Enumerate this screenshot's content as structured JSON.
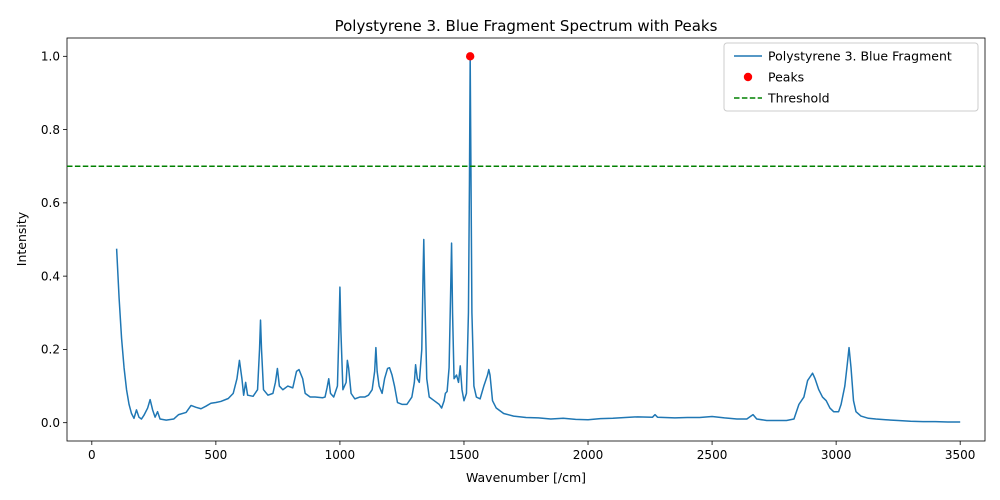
{
  "chart_data": {
    "type": "line",
    "title": "Polystyrene 3. Blue Fragment Spectrum with Peaks",
    "xlabel": "Wavenumber [/cm]",
    "ylabel": "Intensity",
    "xlim": [
      -100,
      3600
    ],
    "ylim": [
      -0.05,
      1.05
    ],
    "xticks": [
      0,
      500,
      1000,
      1500,
      2000,
      2500,
      3000,
      3500
    ],
    "yticks": [
      0.0,
      0.2,
      0.4,
      0.6,
      0.8,
      1.0
    ],
    "xtick_labels": [
      "0",
      "500",
      "1000",
      "1500",
      "2000",
      "2500",
      "3000",
      "3500"
    ],
    "ytick_labels": [
      "0.0",
      "0.2",
      "0.4",
      "0.6",
      "0.8",
      "1.0"
    ],
    "legend_position": "top-right",
    "grid": false,
    "series": [
      {
        "name": "Polystyrene 3. Blue Fragment",
        "kind": "line",
        "color": "#1f77b4",
        "points": [
          [
            100,
            0.475
          ],
          [
            110,
            0.34
          ],
          [
            120,
            0.23
          ],
          [
            130,
            0.15
          ],
          [
            140,
            0.09
          ],
          [
            150,
            0.05
          ],
          [
            160,
            0.025
          ],
          [
            170,
            0.012
          ],
          [
            180,
            0.035
          ],
          [
            190,
            0.015
          ],
          [
            200,
            0.01
          ],
          [
            210,
            0.02
          ],
          [
            225,
            0.04
          ],
          [
            235,
            0.063
          ],
          [
            245,
            0.035
          ],
          [
            255,
            0.015
          ],
          [
            265,
            0.03
          ],
          [
            275,
            0.01
          ],
          [
            300,
            0.007
          ],
          [
            330,
            0.01
          ],
          [
            350,
            0.022
          ],
          [
            380,
            0.028
          ],
          [
            400,
            0.047
          ],
          [
            420,
            0.042
          ],
          [
            440,
            0.038
          ],
          [
            460,
            0.045
          ],
          [
            480,
            0.053
          ],
          [
            500,
            0.055
          ],
          [
            520,
            0.058
          ],
          [
            550,
            0.066
          ],
          [
            570,
            0.08
          ],
          [
            585,
            0.12
          ],
          [
            595,
            0.17
          ],
          [
            605,
            0.12
          ],
          [
            612,
            0.075
          ],
          [
            620,
            0.11
          ],
          [
            628,
            0.075
          ],
          [
            650,
            0.072
          ],
          [
            668,
            0.09
          ],
          [
            676,
            0.2
          ],
          [
            680,
            0.28
          ],
          [
            684,
            0.2
          ],
          [
            692,
            0.09
          ],
          [
            710,
            0.075
          ],
          [
            730,
            0.08
          ],
          [
            740,
            0.11
          ],
          [
            748,
            0.148
          ],
          [
            756,
            0.1
          ],
          [
            770,
            0.09
          ],
          [
            790,
            0.1
          ],
          [
            810,
            0.095
          ],
          [
            825,
            0.14
          ],
          [
            835,
            0.145
          ],
          [
            850,
            0.12
          ],
          [
            860,
            0.08
          ],
          [
            880,
            0.07
          ],
          [
            900,
            0.07
          ],
          [
            930,
            0.068
          ],
          [
            940,
            0.07
          ],
          [
            948,
            0.095
          ],
          [
            955,
            0.12
          ],
          [
            962,
            0.08
          ],
          [
            975,
            0.07
          ],
          [
            990,
            0.1
          ],
          [
            996,
            0.25
          ],
          [
            1000,
            0.37
          ],
          [
            1004,
            0.25
          ],
          [
            1012,
            0.09
          ],
          [
            1025,
            0.11
          ],
          [
            1030,
            0.17
          ],
          [
            1035,
            0.15
          ],
          [
            1045,
            0.08
          ],
          [
            1060,
            0.065
          ],
          [
            1080,
            0.07
          ],
          [
            1100,
            0.07
          ],
          [
            1115,
            0.075
          ],
          [
            1130,
            0.09
          ],
          [
            1140,
            0.14
          ],
          [
            1145,
            0.205
          ],
          [
            1150,
            0.14
          ],
          [
            1158,
            0.1
          ],
          [
            1170,
            0.08
          ],
          [
            1180,
            0.12
          ],
          [
            1192,
            0.148
          ],
          [
            1200,
            0.15
          ],
          [
            1210,
            0.13
          ],
          [
            1220,
            0.1
          ],
          [
            1232,
            0.055
          ],
          [
            1250,
            0.05
          ],
          [
            1270,
            0.05
          ],
          [
            1290,
            0.07
          ],
          [
            1300,
            0.11
          ],
          [
            1305,
            0.158
          ],
          [
            1312,
            0.12
          ],
          [
            1320,
            0.11
          ],
          [
            1330,
            0.2
          ],
          [
            1335,
            0.4
          ],
          [
            1338,
            0.5
          ],
          [
            1342,
            0.35
          ],
          [
            1350,
            0.12
          ],
          [
            1360,
            0.07
          ],
          [
            1380,
            0.06
          ],
          [
            1400,
            0.05
          ],
          [
            1410,
            0.04
          ],
          [
            1420,
            0.06
          ],
          [
            1425,
            0.08
          ],
          [
            1432,
            0.085
          ],
          [
            1440,
            0.15
          ],
          [
            1446,
            0.35
          ],
          [
            1450,
            0.49
          ],
          [
            1454,
            0.3
          ],
          [
            1460,
            0.12
          ],
          [
            1470,
            0.13
          ],
          [
            1478,
            0.11
          ],
          [
            1485,
            0.155
          ],
          [
            1492,
            0.09
          ],
          [
            1500,
            0.06
          ],
          [
            1510,
            0.08
          ],
          [
            1518,
            0.3
          ],
          [
            1522,
            0.65
          ],
          [
            1525,
            1.0
          ],
          [
            1528,
            0.7
          ],
          [
            1532,
            0.3
          ],
          [
            1540,
            0.1
          ],
          [
            1550,
            0.07
          ],
          [
            1565,
            0.065
          ],
          [
            1580,
            0.1
          ],
          [
            1595,
            0.13
          ],
          [
            1600,
            0.145
          ],
          [
            1605,
            0.13
          ],
          [
            1615,
            0.06
          ],
          [
            1630,
            0.04
          ],
          [
            1660,
            0.025
          ],
          [
            1700,
            0.018
          ],
          [
            1750,
            0.014
          ],
          [
            1800,
            0.013
          ],
          [
            1850,
            0.01
          ],
          [
            1900,
            0.012
          ],
          [
            1950,
            0.009
          ],
          [
            2000,
            0.008
          ],
          [
            2050,
            0.011
          ],
          [
            2100,
            0.012
          ],
          [
            2150,
            0.014
          ],
          [
            2200,
            0.016
          ],
          [
            2260,
            0.015
          ],
          [
            2270,
            0.022
          ],
          [
            2280,
            0.015
          ],
          [
            2350,
            0.013
          ],
          [
            2400,
            0.014
          ],
          [
            2450,
            0.014
          ],
          [
            2500,
            0.017
          ],
          [
            2550,
            0.013
          ],
          [
            2600,
            0.01
          ],
          [
            2640,
            0.01
          ],
          [
            2665,
            0.022
          ],
          [
            2680,
            0.01
          ],
          [
            2720,
            0.006
          ],
          [
            2800,
            0.006
          ],
          [
            2830,
            0.01
          ],
          [
            2850,
            0.05
          ],
          [
            2870,
            0.07
          ],
          [
            2885,
            0.115
          ],
          [
            2895,
            0.125
          ],
          [
            2905,
            0.135
          ],
          [
            2915,
            0.12
          ],
          [
            2930,
            0.09
          ],
          [
            2945,
            0.07
          ],
          [
            2960,
            0.06
          ],
          [
            2975,
            0.04
          ],
          [
            2990,
            0.03
          ],
          [
            3010,
            0.03
          ],
          [
            3020,
            0.05
          ],
          [
            3035,
            0.1
          ],
          [
            3045,
            0.16
          ],
          [
            3052,
            0.205
          ],
          [
            3060,
            0.15
          ],
          [
            3070,
            0.06
          ],
          [
            3080,
            0.03
          ],
          [
            3100,
            0.018
          ],
          [
            3130,
            0.012
          ],
          [
            3160,
            0.01
          ],
          [
            3200,
            0.008
          ],
          [
            3250,
            0.006
          ],
          [
            3300,
            0.004
          ],
          [
            3350,
            0.003
          ],
          [
            3400,
            0.003
          ],
          [
            3450,
            0.002
          ],
          [
            3500,
            0.002
          ]
        ]
      },
      {
        "name": "Peaks",
        "kind": "scatter",
        "color": "#ff0000",
        "points": [
          [
            1525,
            1.0
          ]
        ]
      },
      {
        "name": "Threshold",
        "kind": "hline",
        "color": "#008000",
        "y": 0.7
      }
    ]
  }
}
